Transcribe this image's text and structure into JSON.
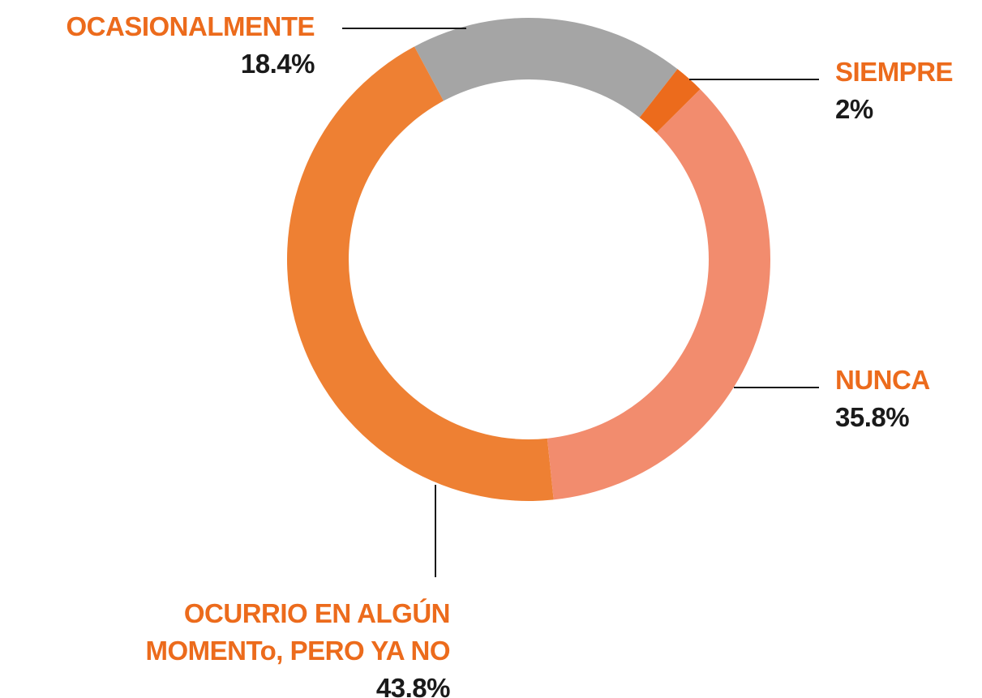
{
  "chart_data": {
    "type": "donut",
    "categories": [
      "SIEMPRE",
      "NUNCA",
      "OCURRIO EN ALGÚN MOMENTo, PERO YA NO",
      "OCASIONALMENTE"
    ],
    "values": [
      2,
      35.8,
      43.8,
      18.4
    ],
    "value_labels": [
      "2%",
      "35.8%",
      "43.8%",
      "18.4%"
    ],
    "colors": [
      "#ec6b1c",
      "#f28c6e",
      "#ee8033",
      "#a5a5a5"
    ]
  }
}
